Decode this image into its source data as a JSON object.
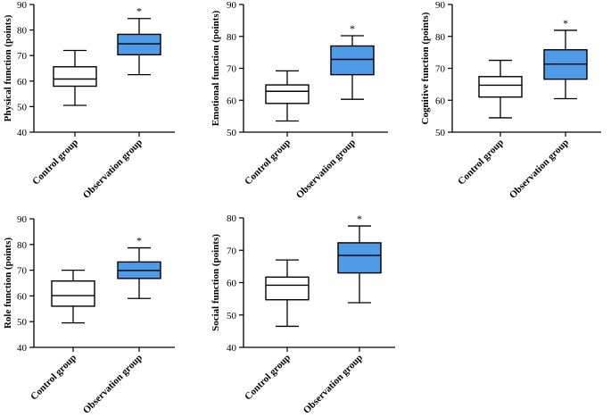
{
  "chart_data": [
    {
      "type": "boxplot",
      "ylabel": "Physical function (points)",
      "ylim": [
        40,
        90
      ],
      "yticks": [
        40,
        50,
        60,
        70,
        80,
        90
      ],
      "categories": [
        "Control group",
        "Observation group"
      ],
      "boxes": [
        {
          "name": "Control group",
          "min": 50.5,
          "q1": 58,
          "median": 60.8,
          "q3": 65.6,
          "max": 72,
          "fill": "#ffffff",
          "marker": ""
        },
        {
          "name": "Observation group",
          "min": 62.5,
          "q1": 70.3,
          "median": 74.6,
          "q3": 78.3,
          "max": 84.5,
          "fill": "#4f9be8",
          "marker": "*"
        }
      ]
    },
    {
      "type": "boxplot",
      "ylabel": "Emotional function (points)",
      "ylim": [
        50,
        90
      ],
      "yticks": [
        50,
        60,
        70,
        80,
        90
      ],
      "categories": [
        "Control group",
        "Observation group"
      ],
      "boxes": [
        {
          "name": "Control group",
          "min": 53.5,
          "q1": 59,
          "median": 62.8,
          "q3": 64.8,
          "max": 69.2,
          "fill": "#ffffff",
          "marker": ""
        },
        {
          "name": "Observation group",
          "min": 60.3,
          "q1": 68,
          "median": 72.8,
          "q3": 77,
          "max": 80.2,
          "fill": "#4f9be8",
          "marker": "*"
        }
      ]
    },
    {
      "type": "boxplot",
      "ylabel": "Cognitive function (points)",
      "ylim": [
        50,
        90
      ],
      "yticks": [
        50,
        60,
        70,
        80,
        90
      ],
      "categories": [
        "Control group",
        "Observation group"
      ],
      "boxes": [
        {
          "name": "Control group",
          "min": 54.5,
          "q1": 61,
          "median": 64.7,
          "q3": 67.4,
          "max": 72.5,
          "fill": "#ffffff",
          "marker": ""
        },
        {
          "name": "Observation group",
          "min": 60.5,
          "q1": 66.6,
          "median": 71.3,
          "q3": 75.8,
          "max": 81.9,
          "fill": "#4f9be8",
          "marker": "*"
        }
      ]
    },
    {
      "type": "boxplot",
      "ylabel": "Role function (points)",
      "ylim": [
        40,
        90
      ],
      "yticks": [
        40,
        50,
        60,
        70,
        80,
        90
      ],
      "categories": [
        "Control group",
        "Observation group"
      ],
      "boxes": [
        {
          "name": "Control group",
          "min": 49.5,
          "q1": 56,
          "median": 60.1,
          "q3": 65.8,
          "max": 70,
          "fill": "#ffffff",
          "marker": ""
        },
        {
          "name": "Observation group",
          "min": 59,
          "q1": 66.8,
          "median": 69.9,
          "q3": 73.2,
          "max": 78.7,
          "fill": "#4f9be8",
          "marker": "*"
        }
      ]
    },
    {
      "type": "boxplot",
      "ylabel": "Social function (points)",
      "ylim": [
        40,
        80
      ],
      "yticks": [
        40,
        50,
        60,
        70,
        80
      ],
      "categories": [
        "Control group",
        "Observation group"
      ],
      "boxes": [
        {
          "name": "Control group",
          "min": 46.5,
          "q1": 54.7,
          "median": 59.2,
          "q3": 61.7,
          "max": 67,
          "fill": "#ffffff",
          "marker": ""
        },
        {
          "name": "Observation group",
          "min": 53.8,
          "q1": 63,
          "median": 68.4,
          "q3": 72.3,
          "max": 77.5,
          "fill": "#4f9be8",
          "marker": "*"
        }
      ]
    }
  ]
}
